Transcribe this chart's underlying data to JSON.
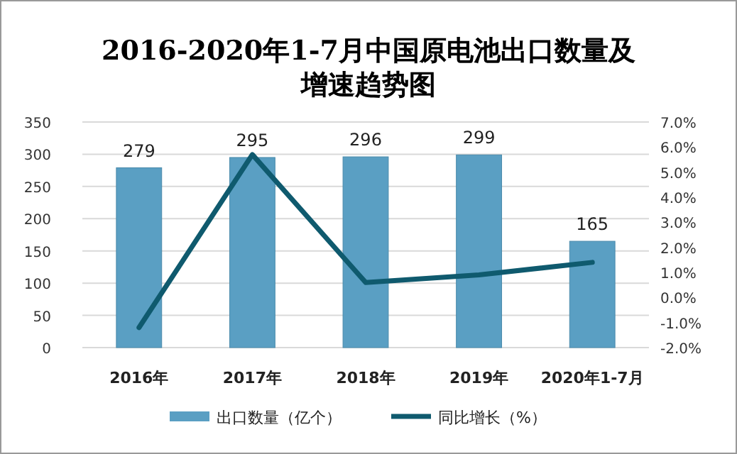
{
  "chart_data": {
    "type": "bar",
    "title": "2016-2020年1-7月中国原电池出口数量及增速趋势图",
    "categories": [
      "2016年",
      "2017年",
      "2018年",
      "2019年",
      "2020年1-7月"
    ],
    "series": [
      {
        "name": "出口数量（亿个）",
        "color": "#5a9fc3",
        "values": [
          279,
          295,
          296,
          299,
          165
        ],
        "value_labels": [
          "279",
          "295",
          "296",
          "299",
          "165"
        ]
      },
      {
        "name": "同比增长（%）",
        "type": "line",
        "axis": "y2",
        "color": "#0f5a6e",
        "values": [
          -1.2,
          5.7,
          0.6,
          0.9,
          1.4
        ]
      }
    ],
    "ylim": [
      0,
      350
    ],
    "yticks": [
      0,
      50,
      100,
      150,
      200,
      250,
      300,
      350
    ],
    "y2lim": [
      -2,
      7
    ],
    "y2ticks": [
      {
        "value": -2,
        "label": "-2.0%"
      },
      {
        "value": -1,
        "label": "-1.0%"
      },
      {
        "value": 0,
        "label": "0.0%"
      },
      {
        "value": 1,
        "label": "1.0%"
      },
      {
        "value": 2,
        "label": "2.0%"
      },
      {
        "value": 3,
        "label": "3.0%"
      },
      {
        "value": 4,
        "label": "4.0%"
      },
      {
        "value": 5,
        "label": "5.0%"
      },
      {
        "value": 6,
        "label": "6.0%"
      },
      {
        "value": 7,
        "label": "7.0%"
      }
    ],
    "grid": "y",
    "legend": "bottom",
    "marker": "none"
  }
}
